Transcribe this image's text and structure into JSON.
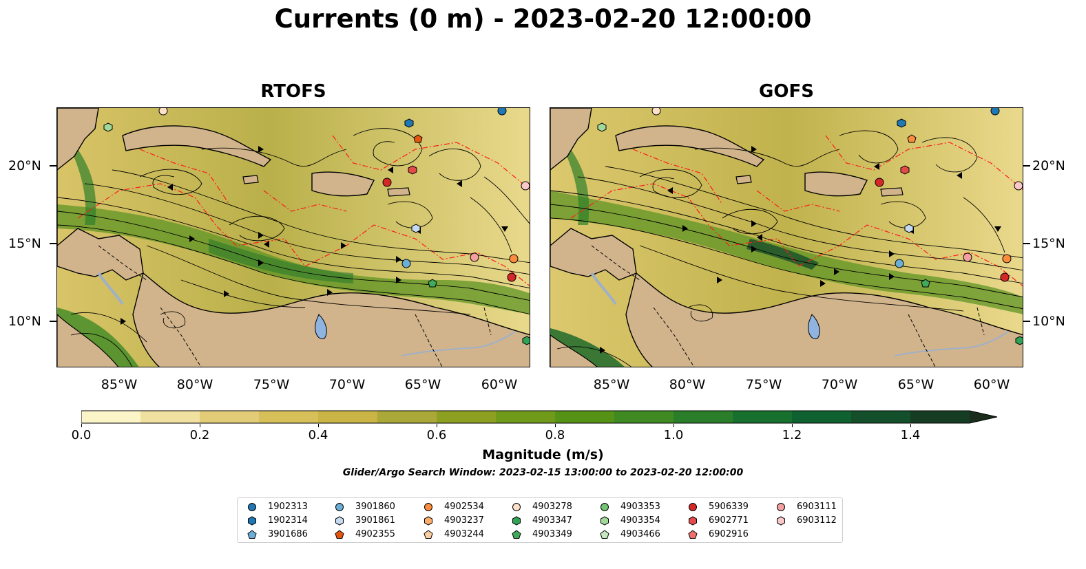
{
  "title": "Currents (0 m) - 2023-02-20 12:00:00",
  "panels": [
    {
      "title": "RTOFS"
    },
    {
      "title": "GOFS"
    }
  ],
  "lat_labels": [
    "20°N",
    "15°N",
    "10°N"
  ],
  "lon_labels": [
    "85°W",
    "80°W",
    "75°W",
    "70°W",
    "65°W",
    "60°W"
  ],
  "colorbar": {
    "label": "Magnitude (m/s)",
    "ticks": [
      "0.0",
      "0.2",
      "0.4",
      "0.6",
      "0.8",
      "1.0",
      "1.2",
      "1.4"
    ],
    "min": 0.0,
    "max": 1.5,
    "step": 0.1,
    "colors": [
      "#fbf5c8",
      "#f1e1a0",
      "#e3cc78",
      "#d7c05a",
      "#c9b445",
      "#a9a838",
      "#8da022",
      "#709a1a",
      "#559216",
      "#3f8a22",
      "#2a7e2a",
      "#17702e",
      "#0f6130",
      "#134f2a",
      "#163d24",
      "#1a2c1b"
    ]
  },
  "subtitle": "Glider/Argo Search Window: 2023-02-15 13:00:00 to 2023-02-20 12:00:00",
  "legend": [
    {
      "id": "1902313",
      "color": "#1f77b4",
      "marker": "circle"
    },
    {
      "id": "1902314",
      "color": "#1f77b4",
      "marker": "hexagon"
    },
    {
      "id": "3901686",
      "color": "#6baed6",
      "marker": "pentagon"
    },
    {
      "id": "3901860",
      "color": "#6baed6",
      "marker": "circle"
    },
    {
      "id": "3901861",
      "color": "#c6dbef",
      "marker": "hexagon"
    },
    {
      "id": "4902355",
      "color": "#e6550d",
      "marker": "pentagon"
    },
    {
      "id": "4902534",
      "color": "#fd8d3c",
      "marker": "circle"
    },
    {
      "id": "4903237",
      "color": "#fdae6b",
      "marker": "hexagon"
    },
    {
      "id": "4903244",
      "color": "#fdd0a2",
      "marker": "pentagon"
    },
    {
      "id": "4903278",
      "color": "#fde0c8",
      "marker": "circle"
    },
    {
      "id": "4903347",
      "color": "#31a354",
      "marker": "hexagon"
    },
    {
      "id": "4903349",
      "color": "#41ab5d",
      "marker": "pentagon"
    },
    {
      "id": "4903353",
      "color": "#74c476",
      "marker": "circle"
    },
    {
      "id": "4903354",
      "color": "#a1d99b",
      "marker": "hexagon"
    },
    {
      "id": "4903466",
      "color": "#c7e9c0",
      "marker": "pentagon"
    },
    {
      "id": "5906339",
      "color": "#d62728",
      "marker": "circle"
    },
    {
      "id": "6902771",
      "color": "#e34a4a",
      "marker": "hexagon"
    },
    {
      "id": "6902916",
      "color": "#ef6f6f",
      "marker": "pentagon"
    },
    {
      "id": "6903111",
      "color": "#f4a0a0",
      "marker": "circle"
    },
    {
      "id": "6903112",
      "color": "#fac8c8",
      "marker": "hexagon"
    }
  ]
}
